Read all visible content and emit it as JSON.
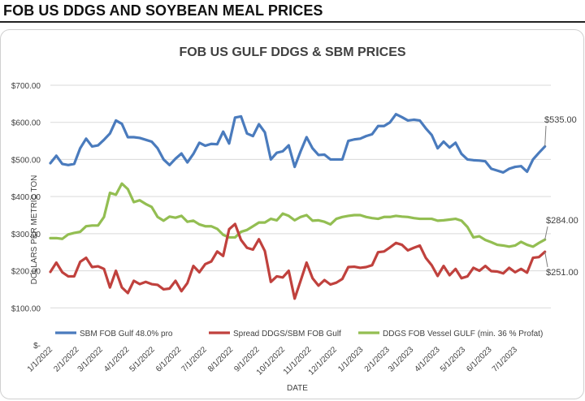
{
  "page": {
    "heading": "FOB US DDGS AND SOYBEAN MEAL PRICES"
  },
  "colors": {
    "sbm": "#4a7bbd",
    "spread": "#c0413d",
    "ddgs": "#93be52",
    "grid": "#d9d9d9",
    "text": "#404040"
  },
  "chart_data": {
    "type": "line",
    "title": "FOB US GULF DDGS & SBM PRICES",
    "xlabel": "DATE",
    "ylabel": "DOLLARS PER METRIC TON",
    "ylim": [
      0,
      700
    ],
    "y_ticks": [
      {
        "value": 0,
        "label": "$-"
      },
      {
        "value": 100,
        "label": "$100.00"
      },
      {
        "value": 200,
        "label": "$200.00"
      },
      {
        "value": 300,
        "label": "$300.00"
      },
      {
        "value": 400,
        "label": "$400.00"
      },
      {
        "value": 500,
        "label": "$500.00"
      },
      {
        "value": 600,
        "label": "$600.00"
      },
      {
        "value": 700,
        "label": "$700.00"
      }
    ],
    "x_ticks": [
      {
        "label": "1/1/2022",
        "week": 0
      },
      {
        "label": "2/1/2022",
        "week": 4.43
      },
      {
        "label": "3/1/2022",
        "week": 8.43
      },
      {
        "label": "4/1/2022",
        "week": 12.86
      },
      {
        "label": "5/1/2022",
        "week": 17.14
      },
      {
        "label": "6/1/2022",
        "week": 21.57
      },
      {
        "label": "7/1/2022",
        "week": 25.86
      },
      {
        "label": "8/1/2022",
        "week": 30.29
      },
      {
        "label": "9/1/2022",
        "week": 34.71
      },
      {
        "label": "10/1/2022",
        "week": 39
      },
      {
        "label": "11/1/2022",
        "week": 43.43
      },
      {
        "label": "12/1/2022",
        "week": 47.71
      },
      {
        "label": "1/1/2023",
        "week": 52.14
      },
      {
        "label": "2/1/2023",
        "week": 56.57
      },
      {
        "label": "3/1/2023",
        "week": 60.57
      },
      {
        "label": "4/1/2023",
        "week": 65
      },
      {
        "label": "5/1/2023",
        "week": 69.29
      },
      {
        "label": "6/1/2023",
        "week": 73.71
      },
      {
        "label": "7/1/2023",
        "week": 78
      }
    ],
    "x_week_max": 84,
    "series": [
      {
        "name": "SBM FOB Gulf 48.0% pro",
        "color": "#4a7bbd",
        "end_label": "$535.00",
        "values": [
          490,
          510,
          488,
          485,
          488,
          530,
          556,
          535,
          538,
          553,
          570,
          605,
          596,
          560,
          560,
          558,
          553,
          548,
          530,
          500,
          485,
          502,
          516,
          492,
          515,
          545,
          537,
          542,
          541,
          575,
          543,
          613,
          616,
          570,
          563,
          595,
          573,
          500,
          518,
          522,
          538,
          480,
          522,
          560,
          530,
          512,
          513,
          500,
          500,
          500,
          550,
          554,
          556,
          563,
          568,
          590,
          590,
          600,
          622,
          614,
          605,
          607,
          605,
          584,
          566,
          530,
          548,
          532,
          545,
          515,
          500,
          498,
          497,
          495,
          475,
          470,
          465,
          475,
          480,
          482,
          467,
          500,
          518,
          535
        ]
      },
      {
        "name": "Spread DDGS/SBM FOB Gulf",
        "color": "#c0413d",
        "end_label": "$251.00",
        "values": [
          197,
          222,
          196,
          185,
          185,
          224,
          235,
          210,
          212,
          205,
          155,
          200,
          155,
          140,
          173,
          164,
          170,
          164,
          162,
          150,
          152,
          173,
          145,
          167,
          213,
          196,
          218,
          225,
          252,
          240,
          312,
          326,
          283,
          262,
          257,
          285,
          253,
          170,
          185,
          182,
          200,
          125,
          173,
          222,
          180,
          160,
          175,
          163,
          168,
          178,
          210,
          211,
          208,
          210,
          215,
          250,
          252,
          263,
          275,
          270,
          255,
          262,
          268,
          235,
          215,
          186,
          213,
          188,
          205,
          180,
          185,
          208,
          200,
          213,
          199,
          198,
          193,
          208,
          196,
          205,
          195,
          235,
          237,
          251
        ]
      },
      {
        "name": "DDGS FOB Vessel GULF  (min. 36 % Profat)",
        "color": "#93be52",
        "end_label": "$284.00",
        "values": [
          288,
          288,
          286,
          298,
          302,
          305,
          320,
          322,
          322,
          345,
          410,
          405,
          435,
          420,
          385,
          390,
          380,
          372,
          345,
          335,
          346,
          343,
          348,
          332,
          335,
          325,
          320,
          320,
          313,
          297,
          290,
          290,
          305,
          310,
          320,
          330,
          330,
          340,
          336,
          354,
          348,
          336,
          345,
          350,
          335,
          336,
          332,
          325,
          340,
          345,
          348,
          350,
          350,
          345,
          342,
          340,
          345,
          345,
          348,
          346,
          345,
          342,
          340,
          340,
          340,
          335,
          336,
          338,
          340,
          335,
          318,
          290,
          293,
          283,
          277,
          270,
          268,
          265,
          268,
          278,
          270,
          265,
          275,
          284
        ]
      }
    ]
  }
}
